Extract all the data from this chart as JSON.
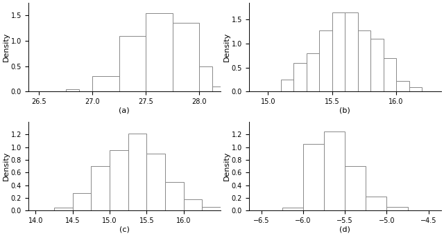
{
  "subplots": [
    {
      "label": "(a)",
      "bin_edges": [
        26.75,
        26.875,
        27.0,
        27.25,
        27.5,
        27.75,
        28.0,
        28.125,
        28.25
      ],
      "densities": [
        0.05,
        0.0,
        0.3,
        1.1,
        1.55,
        1.35,
        0.5,
        0.1
      ],
      "xlim": [
        26.4,
        28.2
      ],
      "xticks": [
        26.5,
        27.0,
        27.5,
        28.0
      ],
      "ylim": [
        0.0,
        1.75
      ],
      "yticks": [
        0.0,
        0.5,
        1.0,
        1.5
      ]
    },
    {
      "label": "(b)",
      "bin_edges": [
        15.1,
        15.2,
        15.3,
        15.4,
        15.5,
        15.6,
        15.7,
        15.8,
        15.9,
        16.0,
        16.1,
        16.2
      ],
      "densities": [
        0.25,
        0.6,
        0.8,
        1.28,
        1.65,
        1.65,
        1.28,
        1.1,
        0.7,
        0.22,
        0.1
      ],
      "xlim": [
        14.85,
        16.35
      ],
      "xticks": [
        15.0,
        15.5,
        16.0
      ],
      "ylim": [
        0.0,
        1.85
      ],
      "yticks": [
        0.0,
        0.5,
        1.0,
        1.5
      ]
    },
    {
      "label": "(c)",
      "bin_edges": [
        14.25,
        14.5,
        14.75,
        15.0,
        15.25,
        15.5,
        15.75,
        16.0,
        16.25,
        16.5
      ],
      "densities": [
        0.05,
        0.28,
        0.7,
        0.95,
        1.22,
        0.9,
        0.45,
        0.18,
        0.06
      ],
      "xlim": [
        13.9,
        16.5
      ],
      "xticks": [
        14.0,
        14.5,
        15.0,
        15.5,
        16.0
      ],
      "ylim": [
        0.0,
        1.4
      ],
      "yticks": [
        0.0,
        0.2,
        0.4,
        0.6,
        0.8,
        1.0,
        1.2
      ]
    },
    {
      "label": "(d)",
      "bin_edges": [
        -6.25,
        -6.0,
        -5.75,
        -5.5,
        -5.25,
        -5.0,
        -4.75,
        -4.5
      ],
      "densities": [
        0.05,
        1.05,
        1.25,
        0.7,
        0.22,
        0.06,
        0.0
      ],
      "xlim": [
        -6.65,
        -4.35
      ],
      "xticks": [
        -6.5,
        -6.0,
        -5.5,
        -5.0,
        -4.5
      ],
      "ylim": [
        0.0,
        1.4
      ],
      "yticks": [
        0.0,
        0.2,
        0.4,
        0.6,
        0.8,
        1.0,
        1.2
      ]
    }
  ],
  "ylabel": "Density",
  "facecolor": "white",
  "edgecolor": "#888888",
  "linewidth": 0.7,
  "tick_fontsize": 7,
  "label_fontsize": 8,
  "ylabel_fontsize": 8
}
